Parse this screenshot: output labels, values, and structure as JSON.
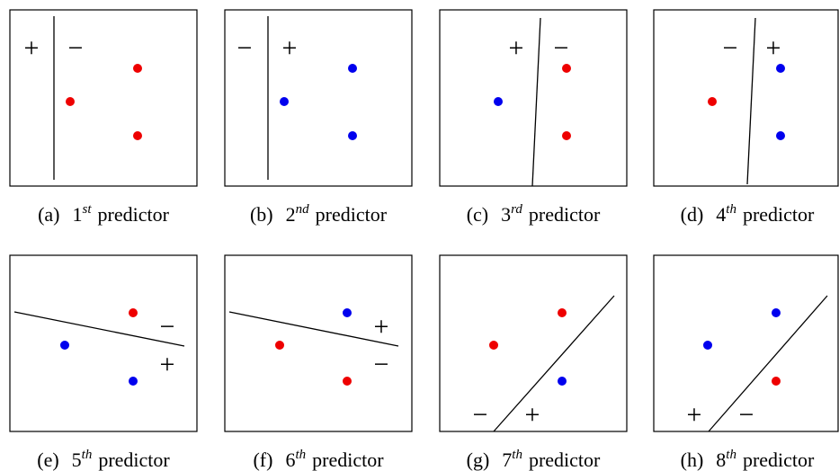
{
  "panels": [
    {
      "label": "(a)",
      "ordinal": "1",
      "suffix": "st",
      "word": "predictor",
      "signs": [
        "+",
        "−"
      ]
    },
    {
      "label": "(b)",
      "ordinal": "2",
      "suffix": "nd",
      "word": "predictor",
      "signs": [
        "−",
        "+"
      ]
    },
    {
      "label": "(c)",
      "ordinal": "3",
      "suffix": "rd",
      "word": "predictor",
      "signs": [
        "+",
        "−"
      ]
    },
    {
      "label": "(d)",
      "ordinal": "4",
      "suffix": "th",
      "word": "predictor",
      "signs": [
        "−",
        "+"
      ]
    },
    {
      "label": "(e)",
      "ordinal": "5",
      "suffix": "th",
      "word": "predictor",
      "signs": [
        "−",
        "+"
      ]
    },
    {
      "label": "(f)",
      "ordinal": "6",
      "suffix": "th",
      "word": "predictor",
      "signs": [
        "+",
        "−"
      ]
    },
    {
      "label": "(g)",
      "ordinal": "7",
      "suffix": "th",
      "word": "predictor",
      "signs": [
        "−",
        "+"
      ]
    },
    {
      "label": "(h)",
      "ordinal": "8",
      "suffix": "th",
      "word": "predictor",
      "signs": [
        "+",
        "−"
      ]
    }
  ]
}
